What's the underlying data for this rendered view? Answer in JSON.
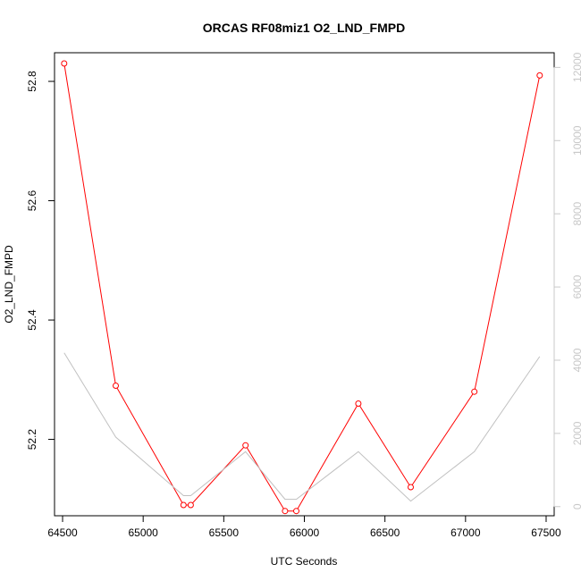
{
  "chart_data": {
    "type": "line",
    "title": "ORCAS RF08miz1 O2_LND_FMPD",
    "xlabel": "UTC Seconds",
    "ylabel": "O2_LND_FMPD",
    "xlim": [
      64450,
      67550
    ],
    "ylim": [
      52.072,
      52.848
    ],
    "y2lim": [
      -250,
      12400
    ],
    "x_ticks": [
      64500,
      65000,
      65500,
      66000,
      66500,
      67000,
      67500
    ],
    "y_ticks": [
      52.2,
      52.4,
      52.6,
      52.8
    ],
    "y_tick_labels": [
      "52.2",
      "52.4",
      "52.6",
      "52.8"
    ],
    "y2_ticks": [
      0,
      2000,
      4000,
      6000,
      8000,
      10000,
      12000
    ],
    "series": [
      {
        "axis": "left",
        "color": "#ff0000",
        "marker": "open-circle",
        "x": [
          64510,
          64830,
          65250,
          65295,
          65635,
          65880,
          65950,
          66335,
          66660,
          67055,
          67460
        ],
        "y": [
          52.83,
          52.29,
          52.09,
          52.09,
          52.19,
          52.08,
          52.08,
          52.26,
          52.12,
          52.28,
          52.81
        ]
      },
      {
        "axis": "right",
        "color": "#c0c0c0",
        "marker": "none",
        "x": [
          64510,
          64830,
          65250,
          65295,
          65635,
          65880,
          65950,
          66335,
          66660,
          67055,
          67460
        ],
        "y": [
          4200,
          1900,
          300,
          300,
          1500,
          200,
          200,
          1500,
          150,
          1500,
          4100
        ]
      }
    ]
  }
}
